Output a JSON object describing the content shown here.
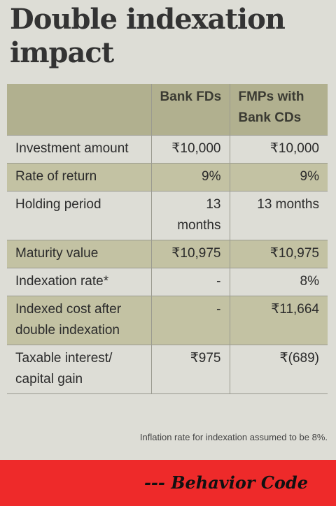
{
  "title": "Double indexation impact",
  "table": {
    "headers": [
      "",
      "Bank FDs",
      "FMPs with Bank CDs"
    ],
    "rows": [
      {
        "label": "Investment amount",
        "bank_fds": "₹10,000",
        "fmps": "₹10,000",
        "shaded": false
      },
      {
        "label": "Rate of return",
        "bank_fds": "9%",
        "fmps": "9%",
        "shaded": true
      },
      {
        "label": "Holding period",
        "bank_fds": "13 months",
        "fmps": "13 months",
        "shaded": false
      },
      {
        "label": "Maturity value",
        "bank_fds": "₹10,975",
        "fmps": "₹10,975",
        "shaded": true
      },
      {
        "label": "Indexation rate*",
        "bank_fds": "-",
        "fmps": "8%",
        "shaded": false
      },
      {
        "label": "Indexed cost after double indexation",
        "bank_fds": "-",
        "fmps": "₹11,664",
        "shaded": true
      },
      {
        "label": "Taxable interest/ capital gain",
        "bank_fds": "₹975",
        "fmps": "₹(689)",
        "shaded": false
      }
    ]
  },
  "footnote": "Inflation rate for indexation assumed to be 8%.",
  "banner": {
    "text": "--- Behavior Code",
    "color": "#ee2a2a"
  }
}
